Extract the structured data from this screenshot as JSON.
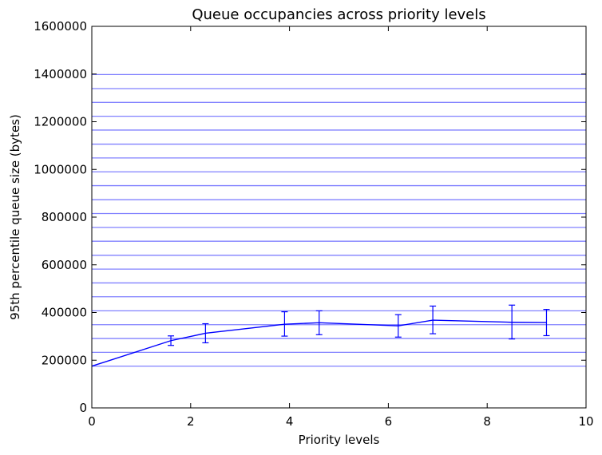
{
  "chart_data": {
    "type": "line",
    "title": "Queue occupancies across priority levels",
    "xlabel": "Priority levels",
    "ylabel": "95th percentile queue size (bytes)",
    "xlim": [
      0,
      10
    ],
    "ylim": [
      0,
      1600000
    ],
    "x_ticks": [
      "0",
      "2",
      "4",
      "6",
      "8",
      "10"
    ],
    "y_ticks": [
      "0",
      "200000",
      "400000",
      "600000",
      "800000",
      "1000000",
      "1200000",
      "1400000",
      "1600000"
    ],
    "grid": false,
    "colors": {
      "series": "#0000ff",
      "reference_lines": "#8080ff"
    },
    "series": [
      {
        "x": [
          0,
          1.6,
          2.3,
          3.9,
          4.6,
          6.2,
          6.9,
          8.5,
          9.2
        ],
        "y": [
          175000,
          282000,
          313000,
          351000,
          357000,
          344000,
          368000,
          359000,
          358000
        ],
        "yerr_low": [
          null,
          262000,
          273000,
          301000,
          307000,
          297000,
          311000,
          289000,
          303000
        ],
        "yerr_high": [
          null,
          302000,
          353000,
          403000,
          407000,
          391000,
          427000,
          431000,
          413000
        ]
      }
    ],
    "reference_lines_y": [
      175000,
      233000,
      291000,
      349000,
      407000,
      466000,
      524000,
      582000,
      640000,
      699000,
      757000,
      815000,
      873000,
      932000,
      990000,
      1048000,
      1106000,
      1165000,
      1223000,
      1281000,
      1339000,
      1398000
    ]
  }
}
